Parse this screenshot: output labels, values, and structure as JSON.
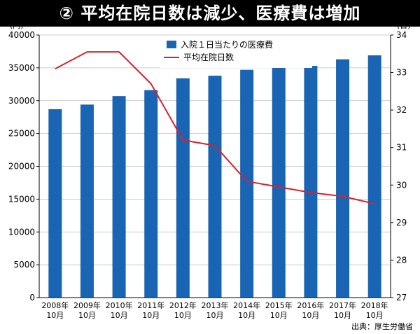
{
  "title": "② 平均在院日数は減少、医療費は増加",
  "source": "出典：厚生労働省",
  "chart_data": {
    "type": "bar+line",
    "categories": [
      [
        "2008年",
        "10月"
      ],
      [
        "2009年",
        "10月"
      ],
      [
        "2010年",
        "10月"
      ],
      [
        "2011年",
        "10月"
      ],
      [
        "2012年",
        "10月"
      ],
      [
        "2013年",
        "10月"
      ],
      [
        "2014年",
        "10月"
      ],
      [
        "2015年",
        "10月"
      ],
      [
        "2016年",
        "10月"
      ],
      [
        "2017年",
        "10月"
      ],
      [
        "2018年",
        "10月"
      ]
    ],
    "left_axis": {
      "unit": "(円)",
      "min": 0,
      "max": 40000,
      "step": 5000,
      "ticks": [
        "0",
        "5000",
        "10000",
        "15000",
        "20000",
        "25000",
        "30000",
        "35000",
        "40000"
      ]
    },
    "right_axis": {
      "unit": "(日)",
      "min": 27,
      "max": 34,
      "step": 1,
      "ticks": [
        "27",
        "28",
        "29",
        "30",
        "31",
        "32",
        "33",
        "34"
      ]
    },
    "series": [
      {
        "name": "入院１日当たりの医療費",
        "type": "bar",
        "axis": "left",
        "color": "#1a64b4",
        "values": [
          28700,
          29400,
          30700,
          31600,
          33400,
          33800,
          34700,
          35000,
          35300,
          36300,
          36900
        ]
      },
      {
        "name": "平均在院日数",
        "type": "line",
        "axis": "right",
        "color": "#d7232d",
        "values": [
          33.1,
          33.55,
          33.55,
          32.7,
          31.2,
          31.05,
          30.1,
          29.95,
          29.8,
          29.7,
          29.5
        ]
      }
    ]
  }
}
